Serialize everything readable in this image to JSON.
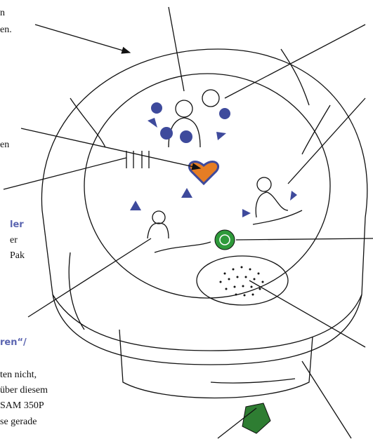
{
  "labels": {
    "top_left_1": "n",
    "top_left_2": "en.",
    "left_mid": "en",
    "bold_1": "ler",
    "left_2": "er",
    "left_3": "Pak",
    "bold_2": "ren“/",
    "bottom_1": "ten nicht,",
    "bottom_2": "über diesem",
    "bottom_3": "SAM 350P",
    "bottom_4": "se gerade"
  }
}
